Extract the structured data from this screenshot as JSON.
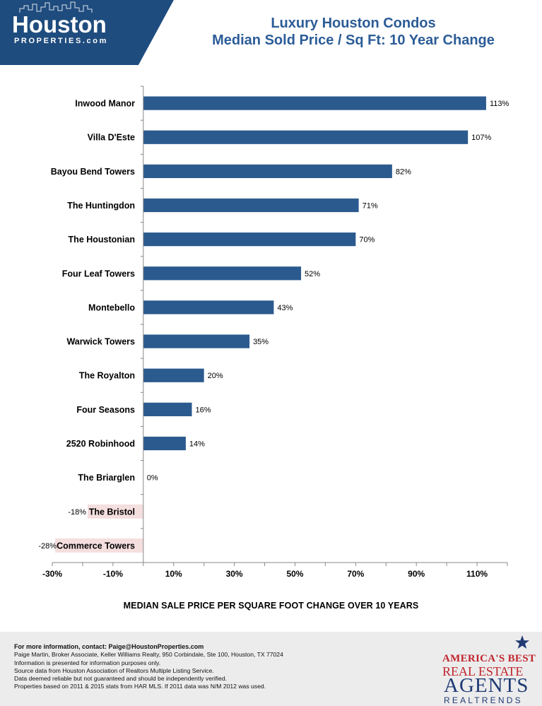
{
  "logo": {
    "main": "Houston",
    "sub": "PROPERTIES.com"
  },
  "header": {
    "title_line1": "Luxury Houston Condos",
    "title_line2": "Median Sold Price / Sq Ft: 10 Year Change"
  },
  "colors": {
    "bar_positive": "#2b5a8e",
    "bar_negative_label_bg": "#f5dede",
    "logo_band": "#1f4c7e",
    "title": "#2c5c97"
  },
  "chart_data": {
    "type": "bar",
    "orientation": "horizontal",
    "categories": [
      "Inwood Manor",
      "Villa D'Este",
      "Bayou Bend Towers",
      "The Huntingdon",
      "The Houstonian",
      "Four Leaf Towers",
      "Montebello",
      "Warwick Towers",
      "The Royalton",
      "Four Seasons",
      "2520 Robinhood",
      "The Briarglen",
      "The Bristol",
      "Commerce Towers"
    ],
    "values": [
      113,
      107,
      82,
      71,
      70,
      52,
      43,
      35,
      20,
      16,
      14,
      0,
      -18,
      -28
    ],
    "value_labels": [
      "113%",
      "107%",
      "82%",
      "71%",
      "70%",
      "52%",
      "43%",
      "35%",
      "20%",
      "16%",
      "14%",
      "0%",
      "-18%",
      "-28%"
    ],
    "xlim": [
      -30,
      120
    ],
    "xticks": [
      -30,
      -10,
      10,
      30,
      50,
      70,
      90,
      110
    ],
    "xtick_labels": [
      "-30%",
      "-10%",
      "10%",
      "30%",
      "50%",
      "70%",
      "90%",
      "110%"
    ],
    "xlabel": "MEDIAN SALE PRICE PER SQUARE FOOT CHANGE OVER 10 YEARS",
    "ylabel": "",
    "grid": false,
    "legend": "none"
  },
  "footer": {
    "lines": [
      "For more information, contact: Paige@HoustonProperties.com",
      "Paige Martin, Broker Associate, Keller Williams Realty, 950 Corbindale, Ste 100, Houston, TX 77024",
      "Information is presented for information purposes only.",
      "Source data from Houston Association of Realtors Multiple Listing Service.",
      "Data deemed reliable but not guaranteed and should be independently verified.",
      "Properties based on 2011 & 2015 stats from HAR MLS.  If 2011 data was N/M 2012 was used."
    ]
  },
  "badge": {
    "line1": "AMERICA'S BEST",
    "line2": "REAL ESTATE",
    "line3": "AGENTS",
    "line4": "REALTRENDS"
  }
}
